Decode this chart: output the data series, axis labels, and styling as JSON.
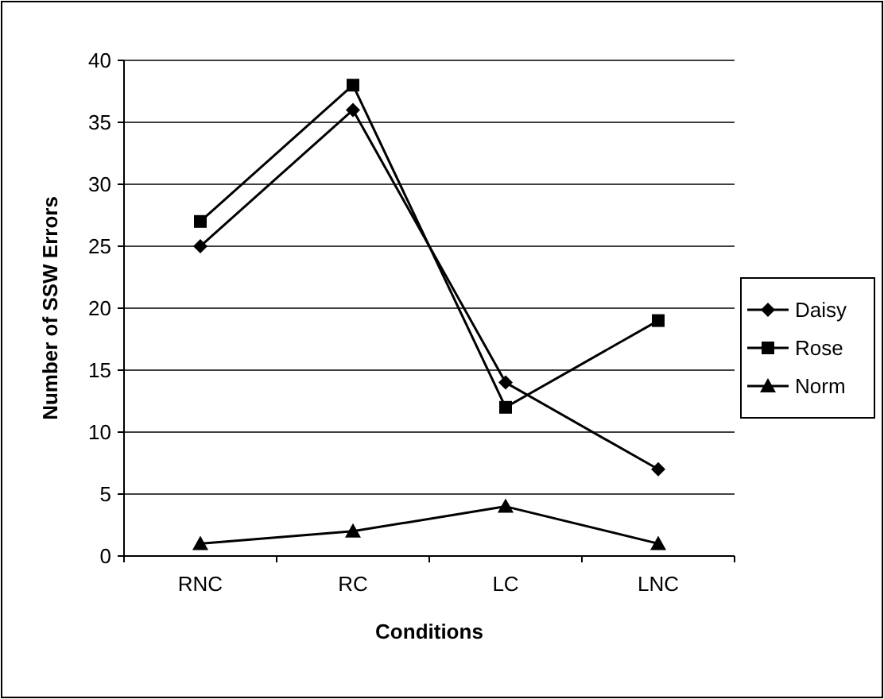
{
  "chart_data": {
    "type": "line",
    "xlabel": "Conditions",
    "ylabel": "Number of SSW Errors",
    "categories": [
      "RNC",
      "RC",
      "LC",
      "LNC"
    ],
    "series": [
      {
        "name": "Daisy",
        "color": "#000000",
        "marker": "diamond",
        "values": [
          25,
          36,
          14,
          7
        ]
      },
      {
        "name": "Rose",
        "color": "#000000",
        "marker": "square",
        "values": [
          27,
          38,
          12,
          19
        ]
      },
      {
        "name": "Norm",
        "color": "#000000",
        "marker": "triangle",
        "values": [
          1,
          2,
          4,
          1
        ]
      }
    ],
    "ylim": [
      0,
      40
    ],
    "yticks": [
      0,
      5,
      10,
      15,
      20,
      25,
      30,
      35,
      40
    ],
    "grid": "y",
    "legend": "right",
    "line_style": "solid"
  }
}
